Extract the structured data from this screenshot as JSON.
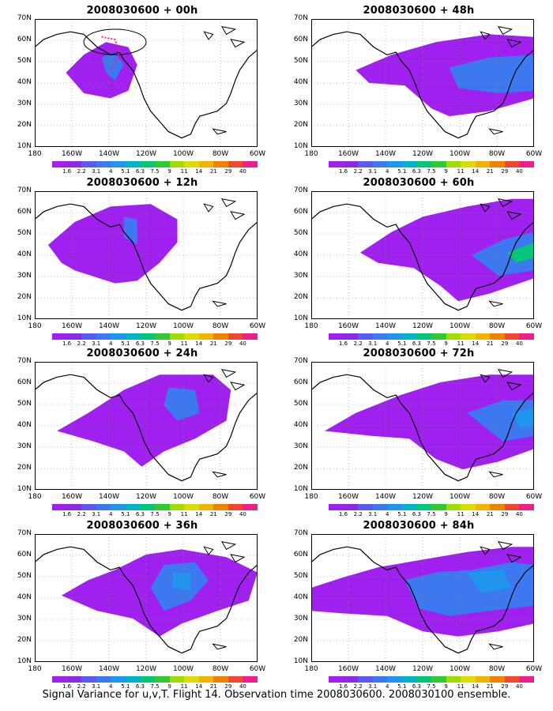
{
  "panels": [
    {
      "title": "2008030600 + 00h"
    },
    {
      "title": "2008030600 + 48h"
    },
    {
      "title": "2008030600 + 12h"
    },
    {
      "title": "2008030600 + 60h"
    },
    {
      "title": "2008030600 + 24h"
    },
    {
      "title": "2008030600 + 72h"
    },
    {
      "title": "2008030600 + 36h"
    },
    {
      "title": "2008030600 + 84h"
    }
  ],
  "y_ticks": [
    "70N",
    "60N",
    "50N",
    "40N",
    "30N",
    "20N",
    "10N"
  ],
  "x_ticks": [
    "180",
    "160W",
    "140W",
    "120W",
    "100W",
    "80W",
    "60W"
  ],
  "colorbar": {
    "labels": [
      "1.6",
      "2.2",
      "3.1",
      "4",
      "5.1",
      "6.3",
      "7.5",
      "9",
      "11",
      "14",
      "21",
      "29",
      "40"
    ],
    "colors": [
      "#a020f0",
      "#8a2be2",
      "#5a5af0",
      "#3c78f0",
      "#1e96f0",
      "#00b4c8",
      "#00c878",
      "#32c832",
      "#a0dc00",
      "#dcdc00",
      "#f0b400",
      "#f08200",
      "#f04632",
      "#f01e8c"
    ]
  },
  "caption": "Signal Variance for u,v,T. Flight 14. Observation time 2008030600. 2008030100 ensemble."
}
